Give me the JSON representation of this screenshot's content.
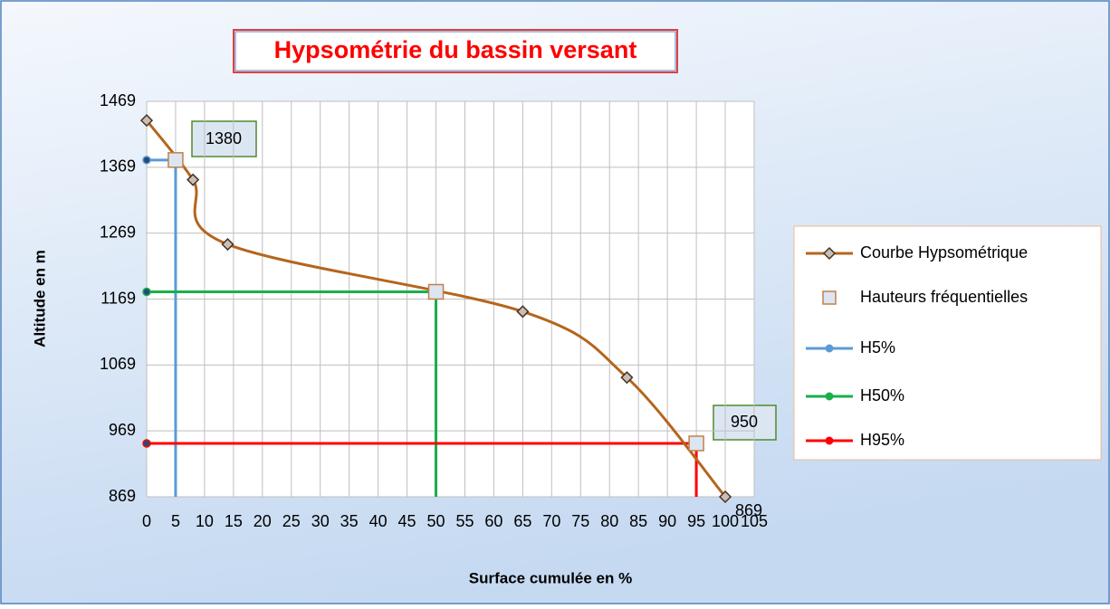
{
  "chart_data": {
    "type": "line",
    "title": "Hypsométrie du bassin versant",
    "x_label": "Surface cumulée en %",
    "y_label": "Altitude en m",
    "xlim": [
      0,
      105
    ],
    "xticks": [
      0,
      5,
      10,
      15,
      20,
      25,
      30,
      35,
      40,
      45,
      50,
      55,
      60,
      65,
      70,
      75,
      80,
      85,
      90,
      95,
      100,
      105
    ],
    "ylim": [
      869,
      1469
    ],
    "yticks": [
      869,
      969,
      1069,
      1169,
      1269,
      1369,
      1469
    ],
    "grid": true,
    "legend": "right",
    "series": [
      {
        "name": "Courbe Hypsométrique",
        "color": "#b5651d",
        "marker": "diamond",
        "smooth": true,
        "x": [
          0,
          8,
          14,
          65,
          83,
          100
        ],
        "values": [
          1440,
          1350,
          1252,
          1150,
          1050,
          869
        ]
      },
      {
        "name": "Hauteurs fréquentielles",
        "color": "#c0804a",
        "marker": "square",
        "line": false,
        "x": [
          5,
          50,
          95
        ],
        "values": [
          1380,
          1180,
          950
        ]
      },
      {
        "name": "H5%",
        "color": "#5b9bd5",
        "marker": "circle",
        "x": [
          0,
          5,
          5
        ],
        "values": [
          1380,
          1380,
          869
        ]
      },
      {
        "name": "H50%",
        "color": "#1aaf4b",
        "marker": "circle",
        "x": [
          0,
          50,
          50
        ],
        "values": [
          1180,
          1180,
          869
        ]
      },
      {
        "name": "H95%",
        "color": "#ff0000",
        "marker": "circle",
        "x": [
          0,
          95,
          95
        ],
        "values": [
          950,
          950,
          869
        ]
      }
    ]
  }
}
